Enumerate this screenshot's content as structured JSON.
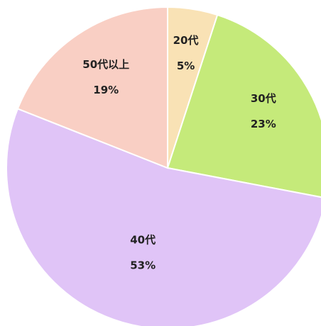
{
  "chart_data": {
    "type": "pie",
    "categories": [
      "20代",
      "30代",
      "40代",
      "50代以上"
    ],
    "values": [
      5,
      23,
      53,
      19
    ],
    "value_labels": [
      "5%",
      "23%",
      "53%",
      "19%"
    ],
    "colors": [
      "#f9e2b5",
      "#c5ea7a",
      "#e0c4f7",
      "#f9cfc4"
    ]
  }
}
